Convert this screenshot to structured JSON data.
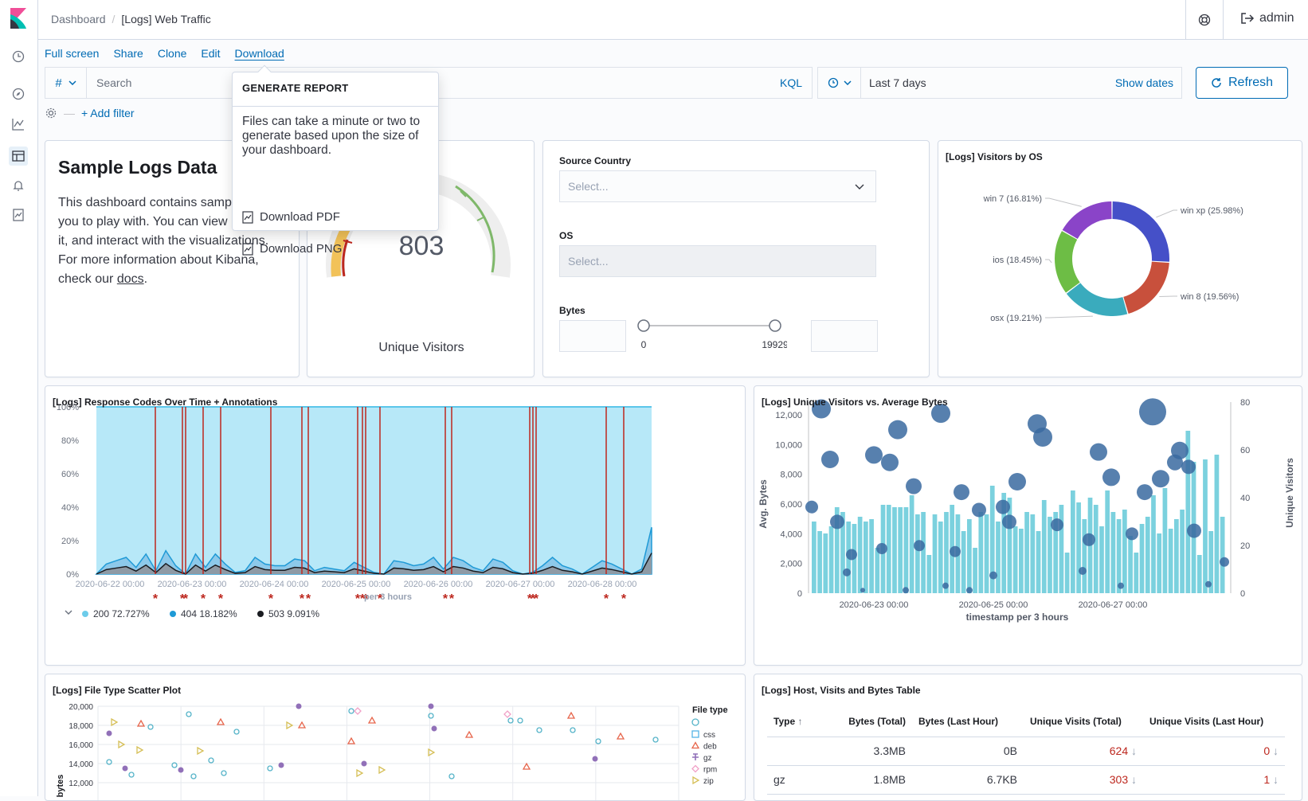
{
  "breadcrumb": [
    "Dashboard",
    "[Logs] Web Traffic"
  ],
  "header": {
    "user": "admin"
  },
  "top_menu": [
    "Full screen",
    "Share",
    "Clone",
    "Edit",
    "Download"
  ],
  "query": {
    "type": "#",
    "placeholder": "Search",
    "language": "KQL"
  },
  "date": {
    "range": "Last 7 days",
    "show_dates": "Show dates",
    "refresh": "Refresh"
  },
  "filter": {
    "add": "+ Add filter"
  },
  "popover": {
    "title": "GENERATE REPORT",
    "description": "Files can take a minute or two to generate based upon the size of your dashboard.",
    "items": [
      "Download PDF",
      "Download PNG"
    ]
  },
  "markdown": {
    "title": "Sample Logs Data",
    "body": "This dashboard contains sample data for you to play with. You can view it, search it, and interact with the visualizations. For more information about Kibana, check our ",
    "link": "docs",
    "end": "."
  },
  "gauge": {
    "value": 803,
    "label": "Unique Visitors"
  },
  "controls": {
    "source_country": {
      "label": "Source Country",
      "placeholder": "Select..."
    },
    "os": {
      "label": "OS",
      "placeholder": "Select..."
    },
    "bytes": {
      "label": "Bytes",
      "min": "0",
      "max": "19929"
    }
  },
  "os_chart": {
    "title": "[Logs] Visitors by OS",
    "slices": [
      {
        "label": "win xp (25.98%)",
        "value": 25.98,
        "color": "#4550c8"
      },
      {
        "label": "win 8 (19.56%)",
        "value": 19.56,
        "color": "#c8503c"
      },
      {
        "label": "osx (19.21%)",
        "value": 19.21,
        "color": "#3aabbd"
      },
      {
        "label": "ios (18.45%)",
        "value": 18.45,
        "color": "#6dbd45"
      },
      {
        "label": "win 7 (16.81%)",
        "value": 16.81,
        "color": "#8a44c8"
      }
    ]
  },
  "response_chart": {
    "title": "[Logs] Response Codes Over Time + Annotations",
    "y_ticks": [
      "100%",
      "80%",
      "60%",
      "40%",
      "20%",
      "0%"
    ],
    "x_ticks": [
      "2020-06-22 00:00",
      "2020-06-23 00:00",
      "2020-06-24 00:00",
      "2020-06-25 00:00",
      "2020-06-26 00:00",
      "2020-06-27 00:00",
      "2020-06-28 00:00"
    ],
    "xlabel": "per 3 hours",
    "legend": [
      {
        "label": "200",
        "pct": "72.727%",
        "color": "#6dccea"
      },
      {
        "label": "404",
        "pct": "18.182%",
        "color": "#1f9ad6"
      },
      {
        "label": "503",
        "pct": "9.091%",
        "color": "#1a1c21"
      }
    ]
  },
  "visitors_chart": {
    "title": "[Logs] Unique Visitors vs. Average Bytes",
    "y_left_ticks": [
      "12,000",
      "10,000",
      "8,000",
      "6,000",
      "4,000",
      "2,000",
      "0"
    ],
    "y_right_ticks": [
      "80",
      "60",
      "40",
      "20",
      "0"
    ],
    "x_ticks": [
      "2020-06-23 00:00",
      "2020-06-25 00:00",
      "2020-06-27 00:00"
    ],
    "ylabel_left": "Avg. Bytes",
    "ylabel_right": "Unique Visitors",
    "xlabel": "timestamp per 3 hours"
  },
  "scatter_chart": {
    "title": "[Logs] File Type Scatter Plot",
    "y_ticks": [
      "20,000",
      "18,000",
      "16,000",
      "14,000",
      "12,000"
    ],
    "ylabel": "bytes",
    "legend_title": "File type",
    "legend": [
      "css",
      "deb",
      "gz",
      "rpm",
      "zip"
    ]
  },
  "table": {
    "title": "[Logs] Host, Visits and Bytes Table",
    "columns": [
      "Type",
      "Bytes (Total)",
      "Bytes (Last Hour)",
      "Unique Visits (Total)",
      "Unique Visits (Last Hour)"
    ],
    "rows": [
      [
        "",
        "3.3MB",
        "0B",
        "624",
        "0"
      ],
      [
        "gz",
        "1.8MB",
        "6.7KB",
        "303",
        "1"
      ]
    ]
  }
}
